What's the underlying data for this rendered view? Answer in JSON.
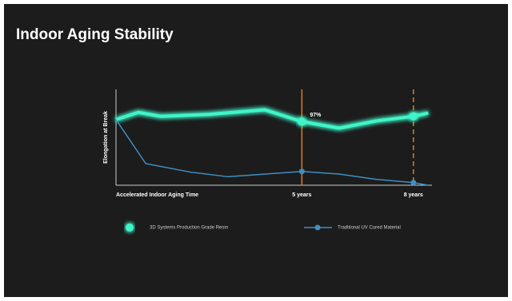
{
  "chart_data": {
    "type": "line",
    "title": "Indoor Aging Stability",
    "y_label": "Elongation at Break",
    "x_label": "Accelerated Indoor Aging Time",
    "xlim": [
      0,
      8.5
    ],
    "ylim": [
      0,
      146
    ],
    "xticks": [
      {
        "value": 5,
        "label": "5 years"
      },
      {
        "value": 8,
        "label": "8 years"
      }
    ],
    "series": [
      {
        "name": "3D Systems Production Grade Resin",
        "color": "#3ff5c8",
        "x": [
          0,
          0.6,
          1.2,
          2.5,
          4,
          5,
          6,
          7,
          8,
          8.4
        ],
        "values": [
          100,
          111,
          105,
          108,
          115,
          97,
          87,
          98,
          105,
          110
        ],
        "value_labels": [
          null,
          null,
          null,
          null,
          null,
          "97%",
          null,
          null,
          null,
          null
        ]
      },
      {
        "name": "Traditional UV Cured Material",
        "color": "#3f8fc4",
        "x": [
          0,
          0.8,
          2,
          3,
          5,
          6,
          7,
          8,
          8.4
        ],
        "values": [
          100,
          33,
          20,
          13,
          21,
          17,
          9,
          4,
          0
        ]
      }
    ]
  }
}
